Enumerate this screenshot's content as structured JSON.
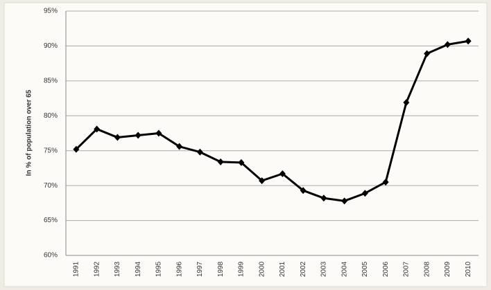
{
  "chart_data": {
    "type": "line",
    "y_axis_label": "In % of population over 65",
    "categories": [
      "1991",
      "1992",
      "1993",
      "1994",
      "1995",
      "1996",
      "1997",
      "1998",
      "1999",
      "2000",
      "2001",
      "2002",
      "2003",
      "2004",
      "2005",
      "2006",
      "2007",
      "2008",
      "2009",
      "2010"
    ],
    "series": [
      {
        "color": "#000000",
        "values": [
          75.2,
          78.1,
          76.9,
          77.2,
          77.5,
          75.6,
          74.8,
          73.4,
          73.3,
          70.7,
          71.7,
          69.3,
          68.2,
          67.8,
          68.9,
          70.5,
          81.9,
          88.9,
          90.2,
          90.7
        ]
      }
    ],
    "ylim": [
      60,
      95
    ],
    "yticks": [
      {
        "value": 60,
        "label": "60%"
      },
      {
        "value": 65,
        "label": "65%"
      },
      {
        "value": 70,
        "label": "70%"
      },
      {
        "value": 75,
        "label": "75%"
      },
      {
        "value": 80,
        "label": "80%"
      },
      {
        "value": 85,
        "label": "85%"
      },
      {
        "value": 90,
        "label": "90%"
      },
      {
        "value": 95,
        "label": "95%"
      }
    ],
    "grid": true
  }
}
